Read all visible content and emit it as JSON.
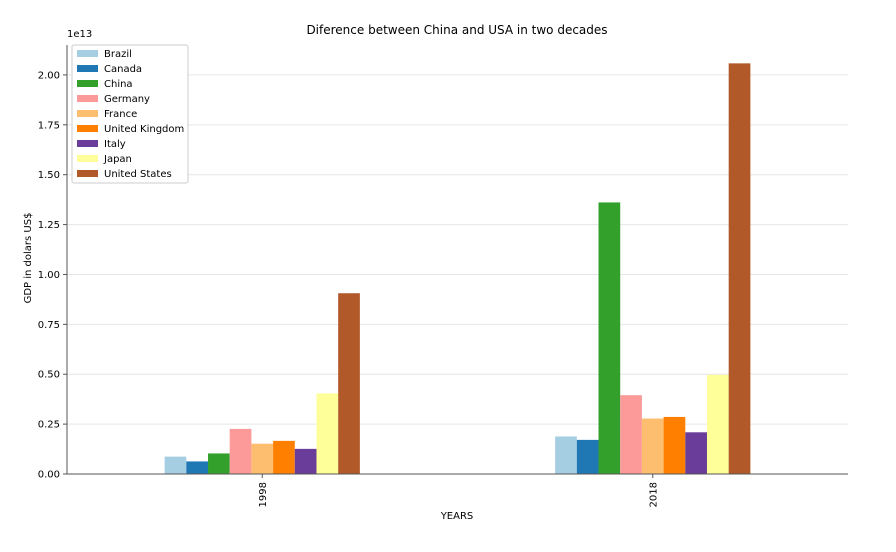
{
  "chart_data": {
    "type": "bar",
    "title": "Diference between China and USA in two decades",
    "xlabel": "YEARS",
    "ylabel": "GDP in dolars US$",
    "y_scale_label": "1e13",
    "y_multiplier": 10000000000000.0,
    "ylim": [
      0,
      2.15
    ],
    "yticks": [
      0.0,
      0.25,
      0.5,
      0.75,
      1.0,
      1.25,
      1.5,
      1.75,
      2.0
    ],
    "ytick_labels": [
      "0.00",
      "0.25",
      "0.50",
      "0.75",
      "1.00",
      "1.25",
      "1.50",
      "1.75",
      "2.00"
    ],
    "grid": "y-axis",
    "legend_position": "top-left",
    "categories": [
      "1998",
      "2018"
    ],
    "series": [
      {
        "name": "Brazil",
        "color": "#a6cee3",
        "values": [
          0.087,
          0.188
        ]
      },
      {
        "name": "Canada",
        "color": "#1f78b4",
        "values": [
          0.063,
          0.171
        ]
      },
      {
        "name": "China",
        "color": "#33a02c",
        "values": [
          0.103,
          1.361
        ]
      },
      {
        "name": "Germany",
        "color": "#fb9a99",
        "values": [
          0.226,
          0.395
        ]
      },
      {
        "name": "France",
        "color": "#fdbf6f",
        "values": [
          0.152,
          0.278
        ]
      },
      {
        "name": "United Kingdom",
        "color": "#ff7f00",
        "values": [
          0.166,
          0.286
        ]
      },
      {
        "name": "Italy",
        "color": "#6a3d9a",
        "values": [
          0.126,
          0.209
        ]
      },
      {
        "name": "Japan",
        "color": "#ffff99",
        "values": [
          0.404,
          0.497
        ]
      },
      {
        "name": "United States",
        "color": "#b15928",
        "values": [
          0.906,
          2.058
        ]
      }
    ]
  }
}
